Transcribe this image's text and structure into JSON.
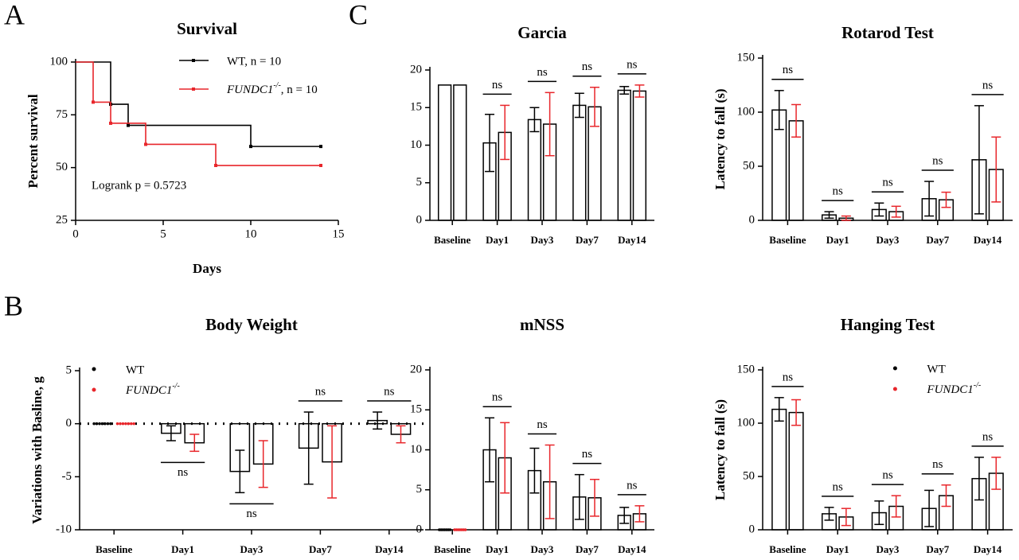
{
  "panel_labels": [
    "A",
    "B",
    "C"
  ],
  "chart_data": [
    {
      "type": "step",
      "title": "Survival",
      "xlabel": "Days",
      "ylabel": "Percent survival",
      "annotation": "Logrank p = 0.5723",
      "xlim": [
        0,
        15
      ],
      "xticks": [
        0,
        5,
        10,
        15
      ],
      "ylim": [
        25,
        100
      ],
      "yticks": [
        25,
        50,
        75,
        100
      ],
      "legend": "upper right",
      "series": [
        {
          "name": "WT, n = 10",
          "color": "#000000",
          "x": [
            0,
            2,
            3,
            10,
            14
          ],
          "values": [
            100,
            80,
            70,
            60,
            60
          ]
        },
        {
          "name": "FUNDC1-/-, n = 10",
          "color": "#e8262b",
          "x": [
            0,
            1,
            2,
            4,
            8,
            14
          ],
          "values": [
            100,
            81,
            71,
            61,
            51,
            51
          ]
        }
      ]
    },
    {
      "type": "bar",
      "title": "Body Weight",
      "ylabel": "Variations with Basline, g",
      "categories": [
        "Baseline",
        "Day1",
        "Day3",
        "Day7",
        "Day14"
      ],
      "ylim": [
        -10,
        5
      ],
      "yticks": [
        -10,
        -5,
        0,
        5
      ],
      "legend": "upper left",
      "significance": [
        null,
        "ns",
        "ns",
        "ns",
        "ns"
      ],
      "series": [
        {
          "name": "WT",
          "color": "#000000",
          "values": [
            0,
            -0.9,
            -4.5,
            -2.3,
            0.3
          ],
          "errors": [
            0,
            0.7,
            2,
            3.4,
            0.8
          ]
        },
        {
          "name": "FUNDC1-/-",
          "color": "#e8262b",
          "values": [
            0,
            -1.8,
            -3.8,
            -3.6,
            -1.0
          ],
          "errors": [
            0,
            0.8,
            2.2,
            3.4,
            0.8
          ]
        }
      ]
    },
    {
      "type": "bar",
      "title": "Garcia",
      "categories": [
        "Baseline",
        "Day1",
        "Day3",
        "Day7",
        "Day14"
      ],
      "ylim": [
        0,
        20
      ],
      "yticks": [
        0,
        5,
        10,
        15,
        20
      ],
      "significance": [
        null,
        "ns",
        "ns",
        "ns",
        "ns"
      ],
      "series": [
        {
          "color": "#000000",
          "values": [
            18,
            10.3,
            13.4,
            15.3,
            17.3
          ],
          "errors": [
            0,
            3.8,
            1.6,
            1.6,
            0.5
          ]
        },
        {
          "color": "#e8262b",
          "values": [
            18,
            11.7,
            12.8,
            15.1,
            17.2
          ],
          "errors": [
            0,
            3.6,
            4.2,
            2.6,
            0.8
          ]
        }
      ]
    },
    {
      "type": "bar",
      "title": "Rotarod Test",
      "ylabel": "Latency to fall (s)",
      "categories": [
        "Baseline",
        "Day1",
        "Day3",
        "Day7",
        "Day14"
      ],
      "ylim": [
        0,
        150
      ],
      "yticks": [
        0,
        50,
        100,
        150
      ],
      "significance": [
        "ns",
        "ns",
        "ns",
        "ns",
        "ns"
      ],
      "series": [
        {
          "color": "#000000",
          "values": [
            102,
            5,
            10,
            20,
            56
          ],
          "errors": [
            18,
            3,
            6,
            16,
            50
          ]
        },
        {
          "color": "#e8262b",
          "values": [
            92,
            2,
            8,
            19,
            47
          ],
          "errors": [
            15,
            2,
            5,
            7,
            30
          ]
        }
      ]
    },
    {
      "type": "bar",
      "title": "mNSS",
      "categories": [
        "Baseline",
        "Day1",
        "Day3",
        "Day7",
        "Day14"
      ],
      "ylim": [
        0,
        20
      ],
      "yticks": [
        0,
        5,
        10,
        15,
        20
      ],
      "significance": [
        null,
        "ns",
        "ns",
        "ns",
        "ns"
      ],
      "series": [
        {
          "color": "#000000",
          "values": [
            0,
            10,
            7.4,
            4.1,
            1.8
          ],
          "errors": [
            0,
            4,
            2.8,
            2.8,
            1
          ]
        },
        {
          "color": "#e8262b",
          "values": [
            0,
            9,
            6,
            4,
            2
          ],
          "errors": [
            0,
            4.4,
            4.6,
            2.3,
            1
          ]
        }
      ]
    },
    {
      "type": "bar",
      "title": "Hanging Test",
      "ylabel": "Latency to fall (s)",
      "categories": [
        "Baseline",
        "Day1",
        "Day3",
        "Day7",
        "Day14"
      ],
      "ylim": [
        0,
        150
      ],
      "yticks": [
        0,
        50,
        100,
        150
      ],
      "legend": "upper right",
      "significance": [
        "ns",
        "ns",
        "ns",
        "ns",
        "ns"
      ],
      "series": [
        {
          "name": "WT",
          "color": "#000000",
          "values": [
            113,
            15,
            16,
            20,
            48
          ],
          "errors": [
            11,
            6,
            11,
            17,
            20
          ]
        },
        {
          "name": "FUNDC1-/-",
          "color": "#e8262b",
          "values": [
            110,
            12,
            22,
            32,
            53
          ],
          "errors": [
            12,
            8,
            10,
            10,
            15
          ]
        }
      ]
    }
  ]
}
